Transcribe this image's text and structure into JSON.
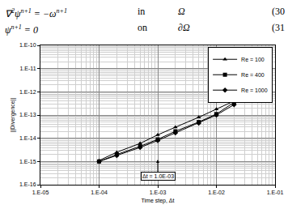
{
  "equations": [
    {
      "math": [
        {
          "t": "∇"
        },
        {
          "t": "2",
          "sup": true
        },
        {
          "t": "ψ"
        },
        {
          "t": "n+1",
          "sup": true
        },
        {
          "t": " = −ω"
        },
        {
          "t": "n+1",
          "sup": true
        }
      ],
      "where": "in",
      "domain": "Ω",
      "number": "(30"
    },
    {
      "math": [
        {
          "t": "ψ"
        },
        {
          "t": "n+1",
          "sup": true
        },
        {
          "t": " = 0"
        }
      ],
      "where": "on",
      "domain": "∂Ω",
      "number": "(31"
    }
  ],
  "chart_data": {
    "type": "line",
    "x_label": "Time step, Δt",
    "y_label": "||Divergence||",
    "log": true,
    "grid": true,
    "legend": "top right",
    "xlim": [
      1e-05,
      0.1
    ],
    "ylim": [
      1e-16,
      1e-10
    ],
    "xticks": [
      {
        "value": 1e-05,
        "label": "1.E-05"
      },
      {
        "value": 0.0001,
        "label": "1.E-04"
      },
      {
        "value": 0.001,
        "label": "1.E-03"
      },
      {
        "value": 0.01,
        "label": "1.E-02"
      },
      {
        "value": 0.1,
        "label": "1.E-01"
      }
    ],
    "yticks": [
      {
        "value": 1e-16,
        "label": "1.E-16"
      },
      {
        "value": 1e-15,
        "label": "1.E-15"
      },
      {
        "value": 1e-14,
        "label": "1.E-14"
      },
      {
        "value": 1e-13,
        "label": "1.E-13"
      },
      {
        "value": 1e-12,
        "label": "1.E-12"
      },
      {
        "value": 1e-11,
        "label": "1.E-11"
      },
      {
        "value": 1e-10,
        "label": "1.E-10"
      }
    ],
    "annotations": [
      {
        "text": "Δt = 1.0E-03",
        "x": 0.001
      }
    ],
    "series": [
      {
        "name": "Re = 100",
        "color": "#000000",
        "marker": "triangle-up",
        "line_style": "solid",
        "x": [
          0.0001,
          0.0002,
          0.0005,
          0.001,
          0.002,
          0.005,
          0.01,
          0.02,
          0.038
        ],
        "values": [
          1.1e-15,
          2.5e-15,
          6e-15,
          1.4e-14,
          3e-14,
          8e-14,
          1.8e-13,
          4e-13,
          1e-12
        ]
      },
      {
        "name": "Re = 400",
        "color": "#000000",
        "marker": "square",
        "line_style": "solid",
        "x": [
          0.0001,
          0.0002,
          0.0005,
          0.001,
          0.002,
          0.005,
          0.01,
          0.02
        ],
        "values": [
          1e-15,
          2e-15,
          4.5e-15,
          9e-15,
          2e-14,
          5e-14,
          1.1e-13,
          3.5e-13
        ]
      },
      {
        "name": "Re = 1000",
        "color": "#000000",
        "marker": "diamond",
        "line_style": "solid",
        "x": [
          0.0001,
          0.0002,
          0.0005,
          0.001,
          0.002,
          0.005,
          0.01,
          0.02
        ],
        "values": [
          1e-15,
          1.8e-15,
          4e-15,
          8e-15,
          1.7e-14,
          4.5e-14,
          1e-13,
          2.8e-13
        ]
      }
    ]
  }
}
